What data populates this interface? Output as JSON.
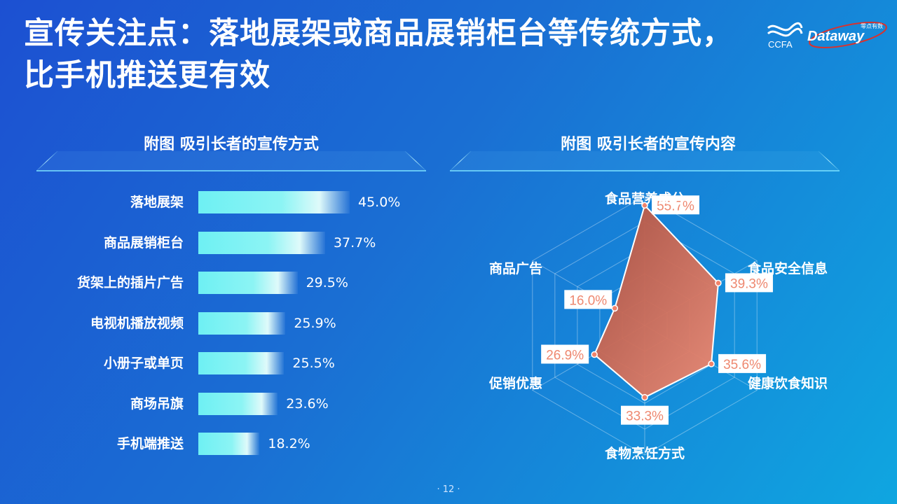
{
  "slide": {
    "title": "宣传关注点：落地展架或商品展销柜台等传统方式，比手机推送更有效",
    "page_number": "· 12 ·"
  },
  "logo": {
    "ccfa_text": "CCFA",
    "dataway_text": "Dataway",
    "dataway_sub": "零点有数"
  },
  "colors": {
    "background_start": "#1c50d2",
    "background_end": "#0fa6e0",
    "bar_fill": "#6ef0f3",
    "radar_fill": "#e8775f",
    "radar_label": "#ee8870"
  },
  "chart_data": [
    {
      "type": "bar",
      "orientation": "horizontal",
      "title": "附图  吸引长者的宣传方式",
      "categories": [
        "落地展架",
        "商品展销柜台",
        "货架上的插片广告",
        "电视机播放视频",
        "小册子或单页",
        "商场吊旗",
        "手机端推送"
      ],
      "values": [
        45.0,
        37.7,
        29.5,
        25.9,
        25.5,
        23.6,
        18.2
      ],
      "value_labels": [
        "45.0%",
        "37.7%",
        "29.5%",
        "25.9%",
        "25.5%",
        "23.6%",
        "18.2%"
      ],
      "unit": "%",
      "xlim": [
        0,
        100
      ],
      "grid": false
    },
    {
      "type": "radar",
      "title": "附图  吸引长者的宣传内容",
      "categories": [
        "食品营养成分",
        "食品安全信息",
        "健康饮食知识",
        "食物烹饪方式",
        "促销优惠",
        "商品广告"
      ],
      "values": [
        55.7,
        39.3,
        35.6,
        33.3,
        26.9,
        16.0
      ],
      "value_labels": [
        "55.7%",
        "39.3%",
        "35.6%",
        "33.3%",
        "26.9%",
        "16.0%"
      ],
      "unit": "%",
      "rlim": [
        0,
        60
      ],
      "grid": true
    }
  ]
}
